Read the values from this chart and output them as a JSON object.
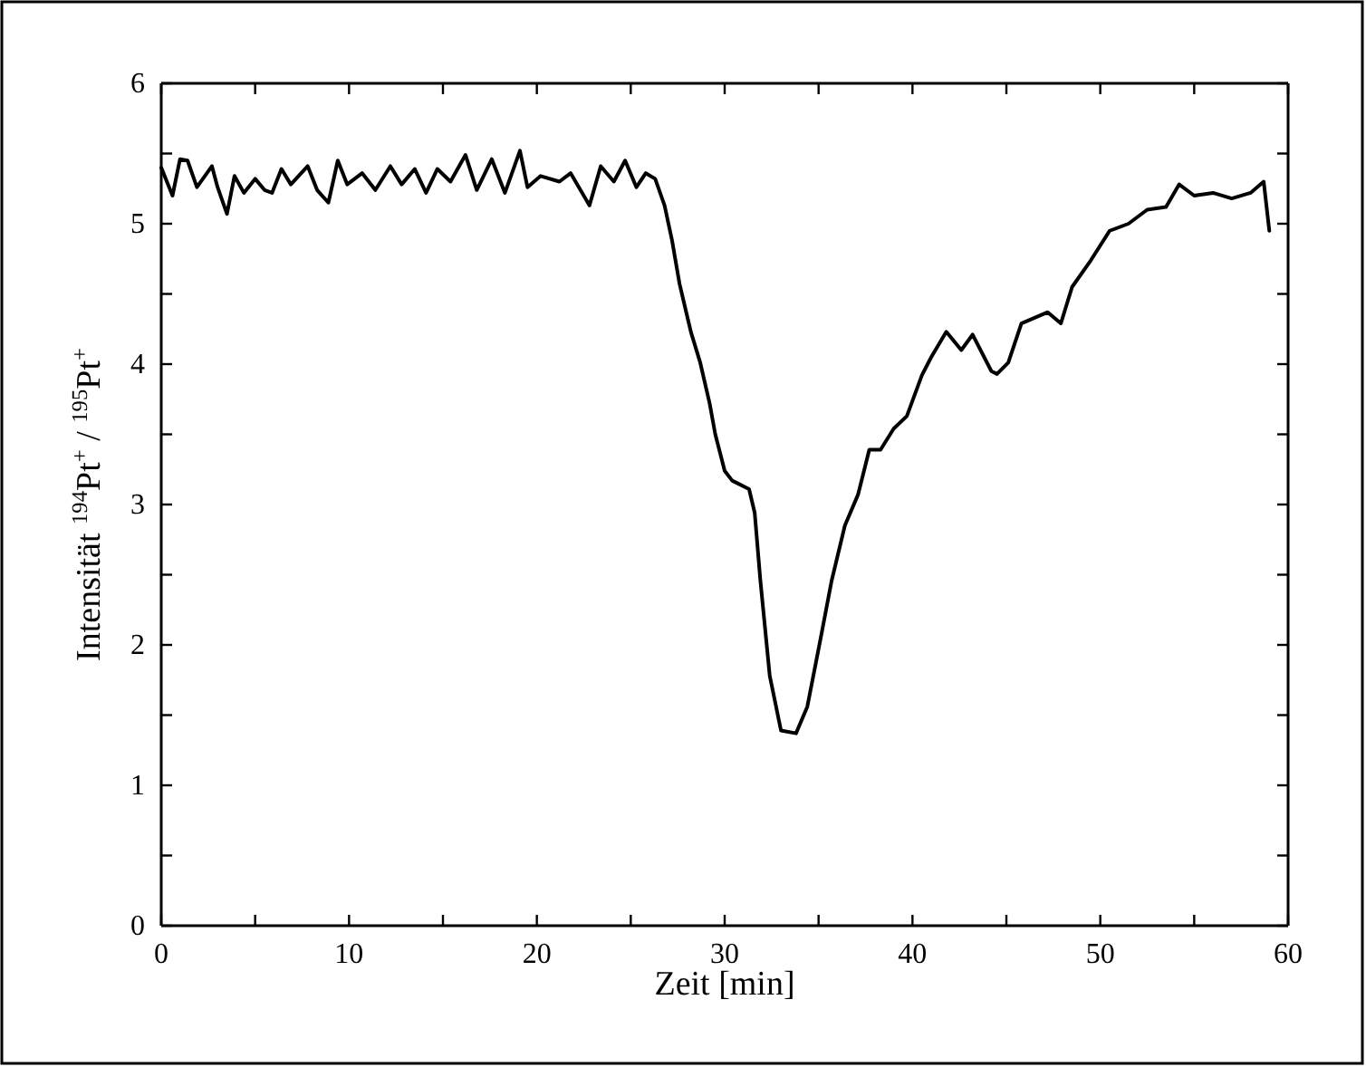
{
  "chart_data": {
    "type": "line",
    "xlabel": "Zeit [min]",
    "ylabel": "Intensität $^{194}$Pt$^{+}$ / $^{195}$Pt$^{+}$",
    "xlim": [
      0,
      60
    ],
    "ylim": [
      0,
      6
    ],
    "xticks": [
      0,
      {
        "value": 5,
        "label": null
      },
      10,
      {
        "value": 15,
        "label": null
      },
      20,
      {
        "value": 25,
        "label": null
      },
      30,
      {
        "value": 35,
        "label": null
      },
      40,
      {
        "value": 45,
        "label": null
      },
      50,
      {
        "value": 55,
        "label": null
      },
      60
    ],
    "yticks": [
      0,
      {
        "value": 0.5,
        "label": null
      },
      1,
      {
        "value": 1.5,
        "label": null
      },
      2,
      {
        "value": 2.5,
        "label": null
      },
      3,
      {
        "value": 3.5,
        "label": null
      },
      4,
      {
        "value": 4.5,
        "label": null
      },
      5,
      {
        "value": 5.5,
        "label": null
      },
      6
    ],
    "grid": false,
    "marker": "none",
    "line_style": "solid",
    "series": [
      {
        "color": "#000000",
        "x": [
          0,
          0.3,
          0.6,
          1.0,
          1.4,
          1.9,
          2.7,
          3.0,
          3.5,
          3.9,
          4.4,
          5.0,
          5.5,
          5.9,
          6.4,
          6.9,
          7.8,
          8.3,
          8.9,
          9.4,
          9.9,
          10.7,
          11.4,
          12.2,
          12.8,
          13.5,
          14.1,
          14.7,
          15.4,
          16.2,
          16.8,
          17.6,
          18.3,
          19.1,
          19.5,
          20.2,
          21.2,
          21.8,
          22.8,
          23.4,
          24.1,
          24.7,
          25.3,
          25.8,
          26.3,
          26.8,
          27.2,
          27.6,
          27.9,
          28.2,
          28.7,
          29.2,
          29.5,
          30.0,
          30.4,
          31.3,
          31.6,
          31.9,
          32.4,
          33.0,
          33.8,
          34.4,
          35.1,
          35.7,
          36.4,
          37.1,
          37.7,
          38.3,
          39.0,
          39.7,
          40.5,
          41.0,
          41.8,
          42.6,
          43.2,
          44.2,
          44.5,
          45.1,
          45.8,
          47.2,
          47.9,
          48.5,
          49.5,
          50.5,
          51.5,
          52.5,
          53.5,
          54.2,
          55.0,
          56.0,
          57.0,
          58.0,
          58.7,
          59.0
        ],
        "values": [
          5.4,
          5.3,
          5.2,
          5.46,
          5.45,
          5.26,
          5.41,
          5.26,
          5.07,
          5.34,
          5.22,
          5.32,
          5.24,
          5.22,
          5.39,
          5.28,
          5.41,
          5.24,
          5.15,
          5.45,
          5.28,
          5.36,
          5.24,
          5.41,
          5.28,
          5.39,
          5.22,
          5.39,
          5.3,
          5.49,
          5.24,
          5.46,
          5.22,
          5.52,
          5.26,
          5.34,
          5.3,
          5.36,
          5.13,
          5.41,
          5.3,
          5.45,
          5.26,
          5.36,
          5.32,
          5.13,
          4.88,
          4.57,
          4.4,
          4.23,
          4.01,
          3.72,
          3.5,
          3.24,
          3.17,
          3.11,
          2.94,
          2.46,
          1.78,
          1.39,
          1.37,
          1.56,
          2.04,
          2.46,
          2.85,
          3.07,
          3.39,
          3.39,
          3.54,
          3.63,
          3.92,
          4.05,
          4.23,
          4.1,
          4.21,
          3.95,
          3.93,
          4.01,
          4.29,
          4.37,
          4.29,
          4.55,
          4.74,
          4.95,
          5.0,
          5.1,
          5.12,
          5.28,
          5.2,
          5.22,
          5.18,
          5.22,
          5.3,
          4.95
        ]
      }
    ]
  }
}
